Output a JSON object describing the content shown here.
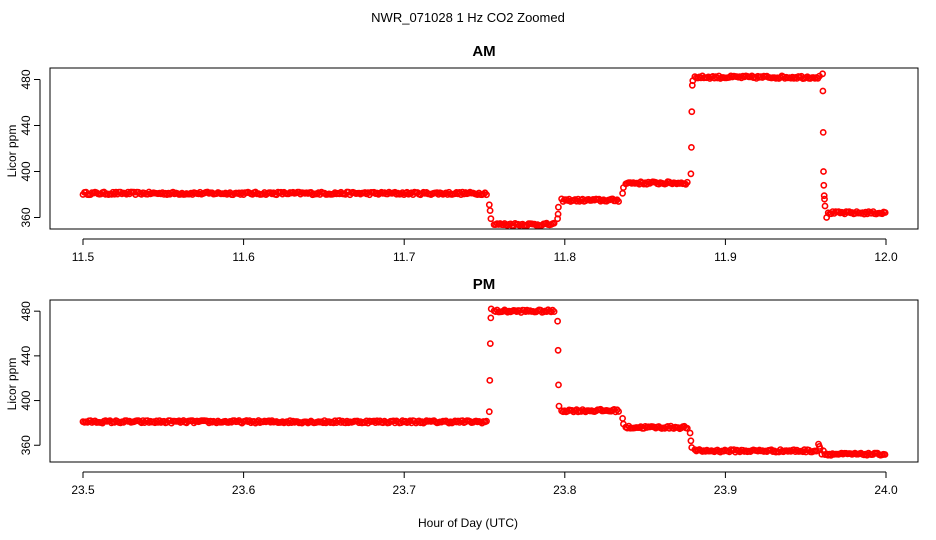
{
  "title": "NWR_071028  1 Hz CO2 Zoomed",
  "xlabel": "Hour of Day (UTC)",
  "colors": {
    "points": "#ff0000",
    "axes": "#000000"
  },
  "chart_data": [
    {
      "type": "scatter",
      "title": "AM",
      "ylabel": "Licor ppm",
      "xlim": [
        11.5,
        12.0
      ],
      "ylim": [
        350,
        490
      ],
      "xticks": [
        "11.5",
        "11.6",
        "11.7",
        "11.8",
        "11.9",
        "12.0"
      ],
      "yticks": [
        "360",
        "400",
        "440",
        "480"
      ],
      "segments": [
        {
          "x": [
            11.5,
            11.752
          ],
          "y": 381,
          "spread": 1.2
        },
        {
          "x": [
            11.756,
            11.794
          ],
          "y": 354,
          "spread": 1.2
        },
        {
          "x": [
            11.798,
            11.834
          ],
          "y": 375,
          "spread": 1.2
        },
        {
          "x": [
            11.838,
            11.877
          ],
          "y": 390,
          "spread": 1.2
        },
        {
          "x": [
            11.881,
            11.959
          ],
          "y": 482,
          "spread": 1.2
        },
        {
          "x": [
            11.964,
            12.0
          ],
          "y": 364,
          "spread": 1.2
        }
      ],
      "points": [
        {
          "x": 11.753,
          "y": 371
        },
        {
          "x": 11.7535,
          "y": 366
        },
        {
          "x": 11.754,
          "y": 359
        },
        {
          "x": 11.7955,
          "y": 359
        },
        {
          "x": 11.7958,
          "y": 363
        },
        {
          "x": 11.796,
          "y": 369
        },
        {
          "x": 11.836,
          "y": 381
        },
        {
          "x": 11.8365,
          "y": 386
        },
        {
          "x": 11.8785,
          "y": 398
        },
        {
          "x": 11.8788,
          "y": 421
        },
        {
          "x": 11.8791,
          "y": 452
        },
        {
          "x": 11.8794,
          "y": 475
        },
        {
          "x": 11.8797,
          "y": 479
        },
        {
          "x": 11.9605,
          "y": 485
        },
        {
          "x": 11.9607,
          "y": 470
        },
        {
          "x": 11.9609,
          "y": 434
        },
        {
          "x": 11.9611,
          "y": 400
        },
        {
          "x": 11.9613,
          "y": 388
        },
        {
          "x": 11.9615,
          "y": 379
        },
        {
          "x": 11.9617,
          "y": 376
        },
        {
          "x": 11.962,
          "y": 370
        },
        {
          "x": 11.963,
          "y": 360
        }
      ]
    },
    {
      "type": "scatter",
      "title": "PM",
      "ylabel": "Licor ppm",
      "xlim": [
        23.5,
        24.0
      ],
      "ylim": [
        345,
        490
      ],
      "xticks": [
        "23.5",
        "23.6",
        "23.7",
        "23.8",
        "23.9",
        "24.0"
      ],
      "yticks": [
        "360",
        "400",
        "440",
        "480"
      ],
      "segments": [
        {
          "x": [
            23.5,
            23.752
          ],
          "y": 381,
          "spread": 1.2
        },
        {
          "x": [
            23.756,
            23.794
          ],
          "y": 480,
          "spread": 1.2
        },
        {
          "x": [
            23.798,
            23.834
          ],
          "y": 391,
          "spread": 1.2
        },
        {
          "x": [
            23.838,
            23.877
          ],
          "y": 376,
          "spread": 1.2
        },
        {
          "x": [
            23.881,
            23.957
          ],
          "y": 355,
          "spread": 1.2
        },
        {
          "x": [
            23.962,
            24.0
          ],
          "y": 352,
          "spread": 1.0
        }
      ],
      "points": [
        {
          "x": 23.753,
          "y": 390
        },
        {
          "x": 23.7533,
          "y": 418
        },
        {
          "x": 23.7536,
          "y": 451
        },
        {
          "x": 23.7539,
          "y": 474
        },
        {
          "x": 23.7542,
          "y": 482
        },
        {
          "x": 23.7955,
          "y": 471
        },
        {
          "x": 23.7958,
          "y": 445
        },
        {
          "x": 23.7961,
          "y": 414
        },
        {
          "x": 23.7964,
          "y": 395
        },
        {
          "x": 23.836,
          "y": 384
        },
        {
          "x": 23.8365,
          "y": 379
        },
        {
          "x": 23.878,
          "y": 371
        },
        {
          "x": 23.8785,
          "y": 364
        },
        {
          "x": 23.879,
          "y": 358
        },
        {
          "x": 23.958,
          "y": 361
        },
        {
          "x": 23.9585,
          "y": 359
        },
        {
          "x": 23.959,
          "y": 357
        },
        {
          "x": 23.96,
          "y": 352
        },
        {
          "x": 23.961,
          "y": 355
        }
      ]
    }
  ]
}
